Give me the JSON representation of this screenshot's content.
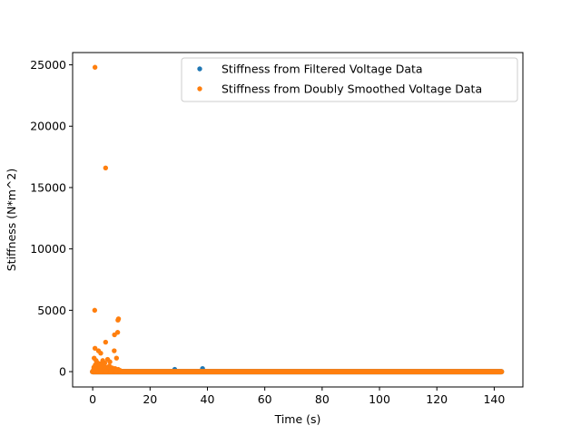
{
  "chart_data": {
    "type": "scatter",
    "title": "",
    "xlabel": "Time (s)",
    "ylabel": "Stiffness (N*m^2)",
    "xlim": [
      -7,
      150
    ],
    "ylim": [
      -1250,
      26000
    ],
    "x_ticks": [
      0,
      20,
      40,
      60,
      80,
      100,
      120,
      140
    ],
    "y_ticks": [
      0,
      5000,
      10000,
      15000,
      20000,
      25000
    ],
    "grid": false,
    "legend": "top-right",
    "series": [
      {
        "name": "Stiffness from Filtered Voltage Data",
        "color": "#1f77b4",
        "points": [
          [
            0.2,
            0
          ],
          [
            0.5,
            50
          ],
          [
            0.8,
            20
          ],
          [
            1.2,
            40
          ],
          [
            1.8,
            30
          ],
          [
            2.5,
            60
          ],
          [
            3.5,
            20
          ],
          [
            5.0,
            30
          ],
          [
            8.0,
            20
          ],
          [
            28.6,
            180
          ],
          [
            38.3,
            250
          ]
        ],
        "dense_segment": {
          "x": [
            0,
            142.5
          ],
          "y": 0
        }
      },
      {
        "name": "Stiffness from Doubly Smoothed Voltage Data",
        "color": "#ff7f0e",
        "points": [
          [
            0.8,
            24800
          ],
          [
            4.5,
            16600
          ],
          [
            0.7,
            5000
          ],
          [
            9.0,
            4300
          ],
          [
            8.8,
            4200
          ],
          [
            8.7,
            3200
          ],
          [
            7.6,
            3000
          ],
          [
            4.5,
            2400
          ],
          [
            0.8,
            1900
          ],
          [
            2.0,
            1700
          ],
          [
            7.5,
            1700
          ],
          [
            2.8,
            1500
          ],
          [
            5.2,
            1000
          ],
          [
            0.5,
            1100
          ],
          [
            8.3,
            1100
          ],
          [
            3.5,
            900
          ],
          [
            1.2,
            900
          ],
          [
            6.0,
            800
          ],
          [
            1.5,
            750
          ],
          [
            4.2,
            700
          ],
          [
            2.4,
            650
          ],
          [
            3.0,
            600
          ],
          [
            0.9,
            550
          ],
          [
            2.1,
            500
          ],
          [
            5.8,
            450
          ],
          [
            1.6,
            450
          ],
          [
            3.8,
            400
          ],
          [
            0.4,
            350
          ],
          [
            4.8,
            350
          ],
          [
            6.8,
            300
          ],
          [
            2.6,
            300
          ],
          [
            7.8,
            250
          ],
          [
            1.1,
            250
          ],
          [
            3.2,
            200
          ],
          [
            5.5,
            200
          ],
          [
            8.9,
            180
          ],
          [
            0.3,
            150
          ],
          [
            6.5,
            150
          ],
          [
            4.0,
            120
          ],
          [
            2.0,
            100
          ],
          [
            9.5,
            100
          ],
          [
            1.4,
            80
          ],
          [
            7.2,
            80
          ],
          [
            3.6,
            60
          ],
          [
            5.0,
            50
          ],
          [
            0.6,
            40
          ],
          [
            8.2,
            40
          ],
          [
            2.8,
            30
          ],
          [
            6.2,
            20
          ],
          [
            4.6,
            10
          ]
        ],
        "dense_segment": {
          "x": [
            0,
            142.5
          ],
          "y": 0
        }
      }
    ]
  }
}
